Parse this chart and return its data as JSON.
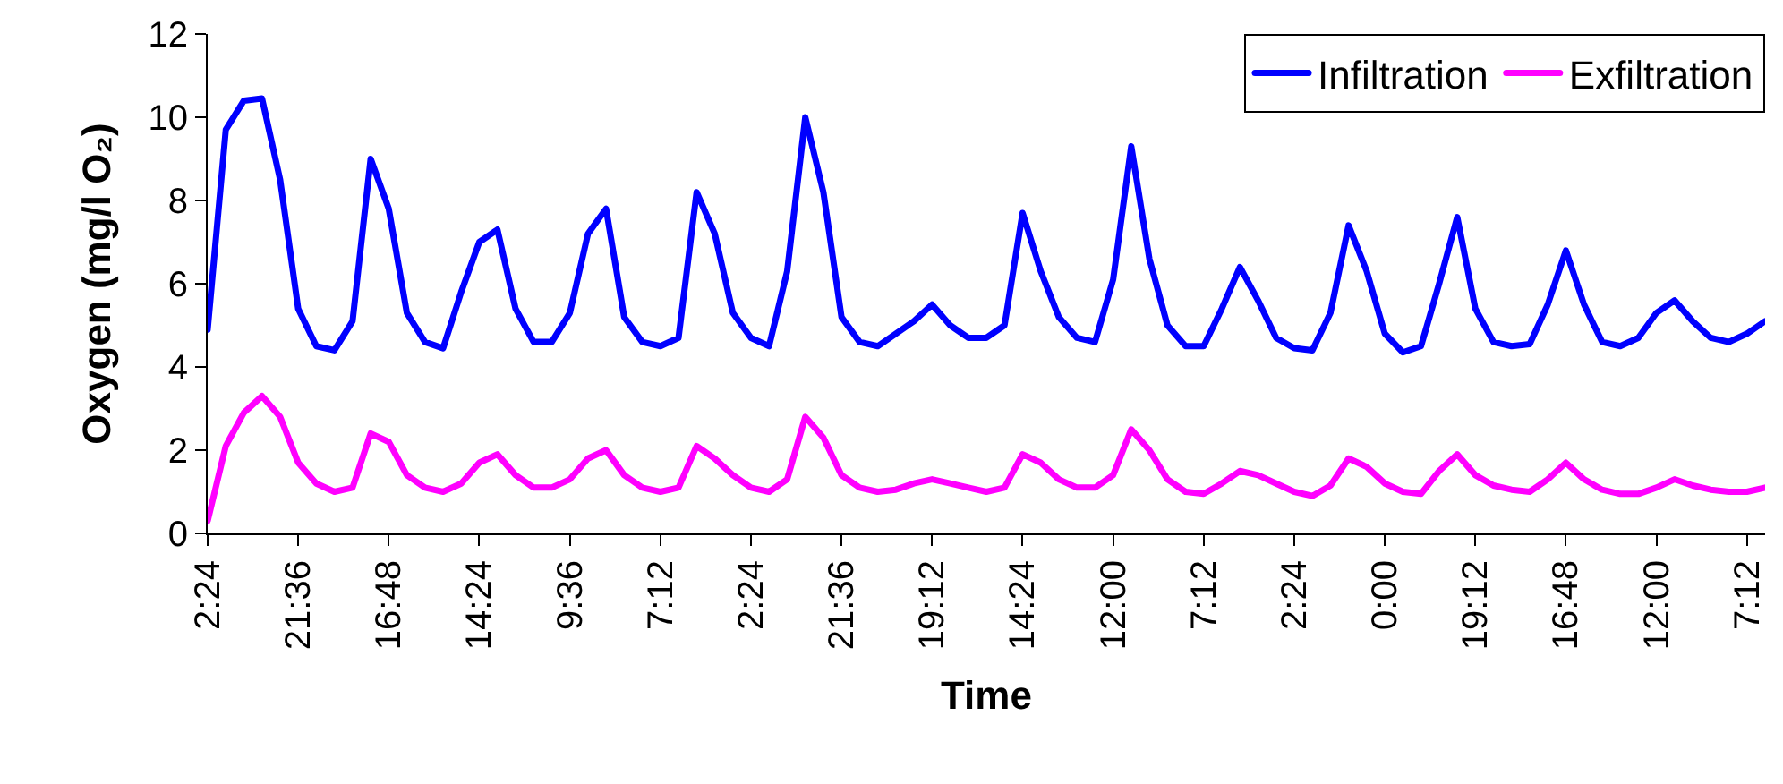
{
  "chart_data": {
    "type": "line",
    "xlabel": "Time",
    "ylabel": "Oxygen (mg/l O₂)",
    "categories": [
      "2:24",
      null,
      null,
      null,
      null,
      "21:36",
      null,
      null,
      null,
      null,
      "16:48",
      null,
      null,
      null,
      null,
      "14:24",
      null,
      null,
      null,
      null,
      "9:36",
      null,
      null,
      null,
      null,
      "7:12",
      null,
      null,
      null,
      null,
      "2:24",
      null,
      null,
      null,
      null,
      "21:36",
      null,
      null,
      null,
      null,
      "19:12",
      null,
      null,
      null,
      null,
      "14:24",
      null,
      null,
      null,
      null,
      "12:00",
      null,
      null,
      null,
      null,
      "7:12",
      null,
      null,
      null,
      null,
      "2:24",
      null,
      null,
      null,
      null,
      "0:00",
      null,
      null,
      null,
      null,
      "19:12",
      null,
      null,
      null,
      null,
      "16:48",
      null,
      null,
      null,
      null,
      "12:00",
      null,
      null,
      null,
      null,
      "7:12",
      null
    ],
    "ylim": [
      0,
      12
    ],
    "yticks": [
      0,
      2,
      4,
      6,
      8,
      10,
      12
    ],
    "grid": false,
    "legend": "top right",
    "marker": "none",
    "line_style": "solid",
    "series": [
      {
        "name": "Infiltration",
        "color": "#0000ff",
        "values": [
          4.9,
          9.7,
          10.4,
          10.45,
          8.5,
          5.4,
          4.5,
          4.4,
          5.1,
          9.0,
          7.8,
          5.3,
          4.6,
          4.45,
          5.8,
          7.0,
          7.3,
          5.4,
          4.6,
          4.6,
          5.3,
          7.2,
          7.8,
          5.2,
          4.6,
          4.5,
          4.7,
          8.2,
          7.2,
          5.3,
          4.7,
          4.5,
          6.3,
          10.0,
          8.2,
          5.2,
          4.6,
          4.5,
          4.8,
          5.1,
          5.5,
          5.0,
          4.7,
          4.7,
          5.0,
          7.7,
          6.3,
          5.2,
          4.7,
          4.6,
          6.1,
          9.3,
          6.6,
          5.0,
          4.5,
          4.5,
          5.4,
          6.4,
          5.6,
          4.7,
          4.45,
          4.4,
          5.3,
          7.4,
          6.3,
          4.8,
          4.35,
          4.5,
          6.0,
          7.6,
          5.4,
          4.6,
          4.5,
          4.55,
          5.5,
          6.8,
          5.5,
          4.6,
          4.5,
          4.7,
          5.3,
          5.6,
          5.1,
          4.7,
          4.6,
          4.8,
          5.1
        ]
      },
      {
        "name": "Exfiltration",
        "color": "#ff00ff",
        "values": [
          0.3,
          2.1,
          2.9,
          3.3,
          2.8,
          1.7,
          1.2,
          1.0,
          1.1,
          2.4,
          2.2,
          1.4,
          1.1,
          1.0,
          1.2,
          1.7,
          1.9,
          1.4,
          1.1,
          1.1,
          1.3,
          1.8,
          2.0,
          1.4,
          1.1,
          1.0,
          1.1,
          2.1,
          1.8,
          1.4,
          1.1,
          1.0,
          1.3,
          2.8,
          2.3,
          1.4,
          1.1,
          1.0,
          1.05,
          1.2,
          1.3,
          1.2,
          1.1,
          1.0,
          1.1,
          1.9,
          1.7,
          1.3,
          1.1,
          1.1,
          1.4,
          2.5,
          2.0,
          1.3,
          1.0,
          0.95,
          1.2,
          1.5,
          1.4,
          1.2,
          1.0,
          0.9,
          1.15,
          1.8,
          1.6,
          1.2,
          1.0,
          0.95,
          1.5,
          1.9,
          1.4,
          1.15,
          1.05,
          1.0,
          1.3,
          1.7,
          1.3,
          1.05,
          0.95,
          0.95,
          1.1,
          1.3,
          1.15,
          1.05,
          1.0,
          1.0,
          1.1
        ]
      }
    ]
  }
}
